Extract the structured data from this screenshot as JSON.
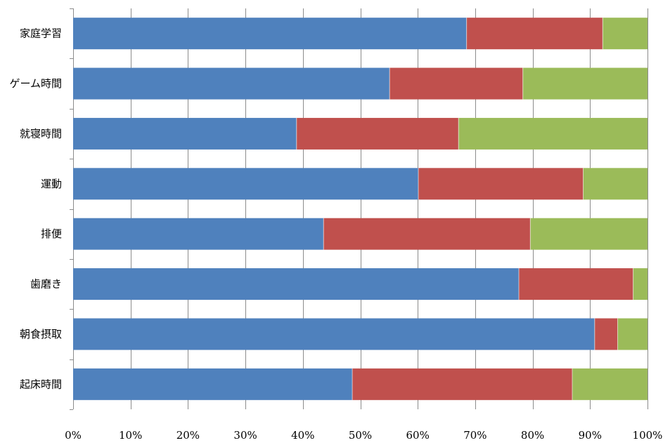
{
  "chart_data": {
    "type": "bar",
    "orientation": "horizontal",
    "stacked": true,
    "stack_mode": "percent",
    "categories": [
      "家庭学習",
      "ゲーム時間",
      "就寝時間",
      "運動",
      "排便",
      "歯磨き",
      "朝食摂取",
      "起床時間"
    ],
    "series": [
      {
        "color": "#4f81bd",
        "values": [
          68.5,
          55.1,
          38.9,
          60.1,
          43.6,
          77.6,
          90.8,
          48.6
        ]
      },
      {
        "color": "#c0504d",
        "values": [
          23.7,
          23.2,
          28.2,
          28.7,
          36.0,
          19.9,
          4.0,
          38.3
        ]
      },
      {
        "color": "#9bbb59",
        "values": [
          7.8,
          21.7,
          32.9,
          11.2,
          20.4,
          2.5,
          5.2,
          13.1
        ]
      }
    ],
    "x_ticks": [
      "0%",
      "10%",
      "20%",
      "30%",
      "40%",
      "50%",
      "60%",
      "70%",
      "80%",
      "90%",
      "100%"
    ],
    "xlim": [
      0,
      100
    ],
    "grid": "vertical",
    "legend": "none",
    "title": "",
    "xlabel": "",
    "ylabel": ""
  }
}
